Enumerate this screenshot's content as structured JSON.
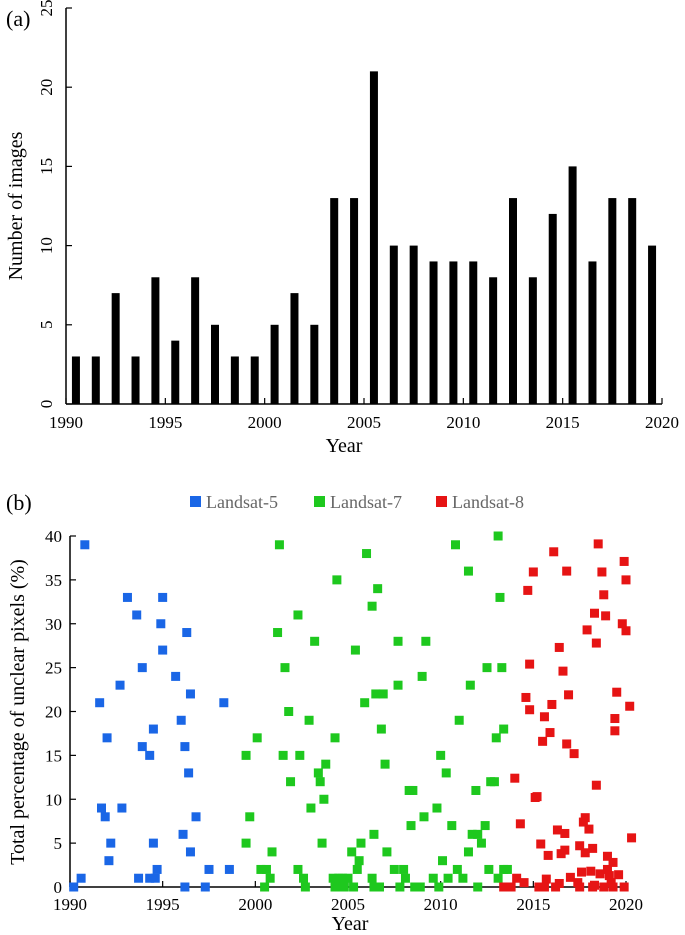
{
  "chart_data": [
    {
      "type": "bar",
      "panel_label": "(a)",
      "xlabel": "Year",
      "ylabel": "Number of images",
      "xlim": [
        1990,
        2020
      ],
      "ylim": [
        0,
        25
      ],
      "xticks": [
        1990,
        1995,
        2000,
        2005,
        2010,
        2015,
        2020
      ],
      "yticks": [
        0,
        5,
        10,
        15,
        20,
        25
      ],
      "bar_color": "#000000",
      "categories": [
        1990,
        1991,
        1992,
        1993,
        1994,
        1995,
        1996,
        1997,
        1998,
        1999,
        2000,
        2001,
        2002,
        2003,
        2004,
        2005,
        2006,
        2007,
        2008,
        2009,
        2010,
        2011,
        2012,
        2013,
        2014,
        2015,
        2016,
        2017,
        2018,
        2019
      ],
      "values": [
        3,
        3,
        7,
        3,
        8,
        4,
        8,
        5,
        3,
        3,
        5,
        7,
        5,
        13,
        13,
        21,
        10,
        10,
        9,
        9,
        9,
        8,
        13,
        8,
        12,
        15,
        9,
        13,
        13,
        10
      ],
      "grid": false
    },
    {
      "type": "scatter",
      "panel_label": "(b)",
      "xlabel": "Year",
      "ylabel": "Total percentage of unclear pixels (%)",
      "xlim": [
        1990,
        2020
      ],
      "ylim": [
        0,
        40
      ],
      "xticks": [
        1990,
        1995,
        2000,
        2005,
        2010,
        2015,
        2020
      ],
      "yticks": [
        0,
        5,
        10,
        15,
        20,
        25,
        30,
        35,
        40
      ],
      "legend_position": "top",
      "grid": false,
      "series": [
        {
          "name": "Landsat-5",
          "color": "#1a66e6",
          "points": [
            [
              1990.2,
              0
            ],
            [
              1990.6,
              1
            ],
            [
              1990.8,
              39
            ],
            [
              1991.6,
              21
            ],
            [
              1991.7,
              9
            ],
            [
              1991.9,
              8
            ],
            [
              1992.0,
              17
            ],
            [
              1992.1,
              3
            ],
            [
              1992.2,
              5
            ],
            [
              1992.7,
              23
            ],
            [
              1992.8,
              9
            ],
            [
              1993.1,
              33
            ],
            [
              1993.6,
              31
            ],
            [
              1993.7,
              1
            ],
            [
              1993.9,
              16
            ],
            [
              1993.9,
              25
            ],
            [
              1994.3,
              15
            ],
            [
              1994.3,
              1
            ],
            [
              1994.5,
              5
            ],
            [
              1994.5,
              18
            ],
            [
              1994.6,
              1
            ],
            [
              1994.7,
              2
            ],
            [
              1994.9,
              30
            ],
            [
              1995.0,
              33
            ],
            [
              1995.0,
              27
            ],
            [
              1995.7,
              24
            ],
            [
              1996.0,
              19
            ],
            [
              1996.1,
              6
            ],
            [
              1996.2,
              16
            ],
            [
              1996.2,
              0
            ],
            [
              1996.3,
              29
            ],
            [
              1996.4,
              13
            ],
            [
              1996.5,
              22
            ],
            [
              1996.5,
              4
            ],
            [
              1996.8,
              8
            ],
            [
              1997.3,
              0
            ],
            [
              1997.5,
              2
            ],
            [
              1998.3,
              21
            ],
            [
              1998.6,
              2
            ]
          ]
        },
        {
          "name": "Landsat-7",
          "color": "#1ec81e",
          "points": [
            [
              1999.5,
              15
            ],
            [
              1999.5,
              5
            ],
            [
              1999.7,
              8
            ],
            [
              2000.1,
              17
            ],
            [
              2000.3,
              2
            ],
            [
              2000.5,
              0
            ],
            [
              2000.6,
              2
            ],
            [
              2000.8,
              1
            ],
            [
              2000.9,
              4
            ],
            [
              2001.2,
              29
            ],
            [
              2001.3,
              39
            ],
            [
              2001.5,
              15
            ],
            [
              2001.6,
              25
            ],
            [
              2001.8,
              20
            ],
            [
              2001.9,
              12
            ],
            [
              2002.3,
              31
            ],
            [
              2002.3,
              2
            ],
            [
              2002.4,
              15
            ],
            [
              2002.6,
              1
            ],
            [
              2002.7,
              0
            ],
            [
              2002.9,
              19
            ],
            [
              2003.0,
              9
            ],
            [
              2003.2,
              28
            ],
            [
              2003.4,
              13
            ],
            [
              2003.5,
              12
            ],
            [
              2003.6,
              5
            ],
            [
              2003.7,
              10
            ],
            [
              2003.8,
              14
            ],
            [
              2004.2,
              1
            ],
            [
              2004.3,
              0
            ],
            [
              2004.3,
              17
            ],
            [
              2004.4,
              35
            ],
            [
              2004.5,
              1
            ],
            [
              2004.6,
              0
            ],
            [
              2004.7,
              1
            ],
            [
              2004.8,
              0
            ],
            [
              2005.0,
              1
            ],
            [
              2005.2,
              4
            ],
            [
              2005.3,
              0
            ],
            [
              2005.4,
              27
            ],
            [
              2005.5,
              2
            ],
            [
              2005.6,
              3
            ],
            [
              2005.7,
              5
            ],
            [
              2005.9,
              21
            ],
            [
              2006.0,
              38
            ],
            [
              2006.3,
              32
            ],
            [
              2006.3,
              1
            ],
            [
              2006.4,
              6
            ],
            [
              2006.4,
              0
            ],
            [
              2006.5,
              22
            ],
            [
              2006.6,
              34
            ],
            [
              2006.7,
              0
            ],
            [
              2006.8,
              18
            ],
            [
              2006.9,
              22
            ],
            [
              2007.0,
              14
            ],
            [
              2007.1,
              4
            ],
            [
              2007.5,
              2
            ],
            [
              2007.7,
              23
            ],
            [
              2007.7,
              28
            ],
            [
              2007.8,
              0
            ],
            [
              2008.0,
              2
            ],
            [
              2008.1,
              1
            ],
            [
              2008.3,
              11
            ],
            [
              2008.4,
              7
            ],
            [
              2008.5,
              11
            ],
            [
              2008.6,
              0
            ],
            [
              2008.9,
              0
            ],
            [
              2009.0,
              24
            ],
            [
              2009.1,
              8
            ],
            [
              2009.2,
              28
            ],
            [
              2009.6,
              1
            ],
            [
              2009.8,
              9
            ],
            [
              2009.9,
              0
            ],
            [
              2010.0,
              15
            ],
            [
              2010.1,
              3
            ],
            [
              2010.3,
              13
            ],
            [
              2010.4,
              1
            ],
            [
              2010.6,
              7
            ],
            [
              2010.8,
              39
            ],
            [
              2010.9,
              2
            ],
            [
              2011.0,
              19
            ],
            [
              2011.2,
              1
            ],
            [
              2011.5,
              36
            ],
            [
              2011.5,
              4
            ],
            [
              2011.6,
              23
            ],
            [
              2011.7,
              6
            ],
            [
              2011.9,
              11
            ],
            [
              2012.0,
              6
            ],
            [
              2012.0,
              0
            ],
            [
              2012.2,
              5
            ],
            [
              2012.4,
              7
            ],
            [
              2012.5,
              25
            ],
            [
              2012.6,
              2
            ],
            [
              2012.7,
              12
            ],
            [
              2012.9,
              12
            ],
            [
              2013.0,
              17
            ],
            [
              2013.1,
              1
            ],
            [
              2013.1,
              40
            ],
            [
              2013.2,
              33
            ],
            [
              2013.3,
              25
            ],
            [
              2013.4,
              2
            ],
            [
              2013.4,
              18
            ],
            [
              2013.6,
              2
            ],
            [
              2013.7,
              0
            ]
          ]
        },
        {
          "name": "Landsat-8",
          "color": "#e61414",
          "points": [
            [
              2013.4,
              0
            ],
            [
              2013.8,
              0
            ],
            [
              2014.0,
              12.4
            ],
            [
              2014.1,
              1
            ],
            [
              2014.3,
              7.2
            ],
            [
              2014.5,
              0.5
            ],
            [
              2014.6,
              21.6
            ],
            [
              2014.7,
              33.8
            ],
            [
              2014.8,
              25.4
            ],
            [
              2014.8,
              20.2
            ],
            [
              2015.0,
              35.9
            ],
            [
              2015.1,
              10.2
            ],
            [
              2015.2,
              10.3
            ],
            [
              2015.3,
              0
            ],
            [
              2015.4,
              4.9
            ],
            [
              2015.5,
              16.6
            ],
            [
              2015.6,
              0
            ],
            [
              2015.6,
              19.4
            ],
            [
              2015.7,
              0.9
            ],
            [
              2015.8,
              3.6
            ],
            [
              2015.9,
              17.6
            ],
            [
              2016.0,
              20.8
            ],
            [
              2016.1,
              38.2
            ],
            [
              2016.2,
              0
            ],
            [
              2016.3,
              6.5
            ],
            [
              2016.4,
              27.3
            ],
            [
              2016.4,
              0.4
            ],
            [
              2016.5,
              3.8
            ],
            [
              2016.6,
              24.6
            ],
            [
              2016.7,
              6.1
            ],
            [
              2016.7,
              4.2
            ],
            [
              2016.8,
              16.3
            ],
            [
              2016.8,
              36
            ],
            [
              2016.9,
              21.9
            ],
            [
              2017.0,
              1.1
            ],
            [
              2017.2,
              15.2
            ],
            [
              2017.4,
              0.5
            ],
            [
              2017.5,
              4.7
            ],
            [
              2017.5,
              0
            ],
            [
              2017.6,
              1.7
            ],
            [
              2017.7,
              7.4
            ],
            [
              2017.8,
              3.9
            ],
            [
              2017.8,
              7.9
            ],
            [
              2017.9,
              29.3
            ],
            [
              2018.0,
              6.6
            ],
            [
              2018.1,
              1.8
            ],
            [
              2018.2,
              0
            ],
            [
              2018.2,
              4.4
            ],
            [
              2018.3,
              31.2
            ],
            [
              2018.3,
              0.2
            ],
            [
              2018.4,
              27.8
            ],
            [
              2018.4,
              11.6
            ],
            [
              2018.5,
              39.1
            ],
            [
              2018.6,
              1.5
            ],
            [
              2018.7,
              35.9
            ],
            [
              2018.8,
              33.3
            ],
            [
              2018.8,
              0
            ],
            [
              2018.9,
              30.9
            ],
            [
              2019.0,
              2
            ],
            [
              2019.0,
              3.5
            ],
            [
              2019.1,
              1.3
            ],
            [
              2019.2,
              0.5
            ],
            [
              2019.3,
              0
            ],
            [
              2019.3,
              2.8
            ],
            [
              2019.4,
              17.8
            ],
            [
              2019.4,
              19.2
            ],
            [
              2019.5,
              22.2
            ],
            [
              2019.6,
              1.4
            ],
            [
              2019.8,
              30
            ],
            [
              2019.9,
              37.1
            ],
            [
              2019.9,
              0
            ],
            [
              2020.0,
              35
            ],
            [
              2020.0,
              29.2
            ],
            [
              2020.2,
              20.6
            ],
            [
              2020.3,
              5.6
            ]
          ]
        }
      ]
    }
  ]
}
